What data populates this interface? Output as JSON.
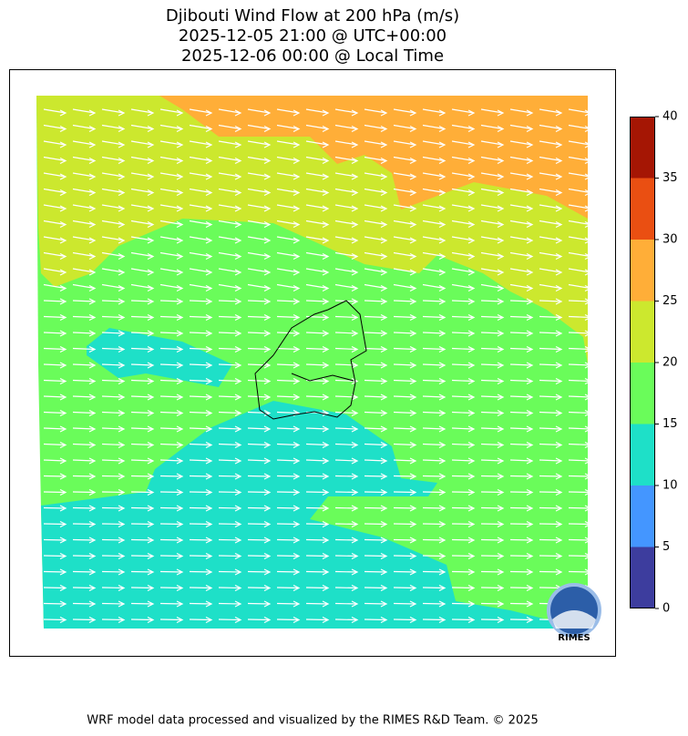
{
  "title": [
    "Djibouti Wind Flow at 200 hPa (m/s)",
    "2025-12-05 21:00 @ UTC+00:00",
    "2025-12-06 00:00 @ Local Time"
  ],
  "colorbar": {
    "lim": [
      0,
      40
    ],
    "ticks": [
      0,
      5,
      10,
      15,
      20,
      25,
      30,
      35,
      40
    ],
    "colors": [
      "#3d3d9e",
      "#4496ff",
      "#1ee0c8",
      "#6afc5a",
      "#cce82e",
      "#ffae38",
      "#ea4f12",
      "#a51604"
    ]
  },
  "logo": "RIMES",
  "footer": "WRF model data processed and visualized by the RIMES R&D Team. © 2025"
}
